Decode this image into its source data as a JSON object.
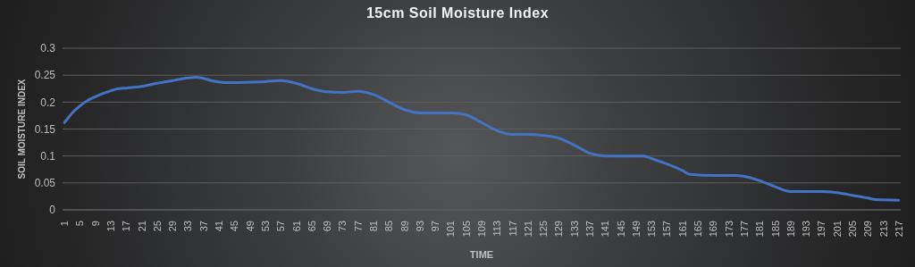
{
  "chart_data": {
    "type": "line",
    "title": "15cm Soil Moisture Index",
    "xlabel": "TIME",
    "ylabel": "SOIL MOISTURE INDEX",
    "x": [
      1,
      3,
      5,
      7,
      9,
      11,
      13,
      15,
      17,
      21,
      25,
      29,
      33,
      35,
      37,
      39,
      43,
      49,
      53,
      57,
      61,
      65,
      69,
      73,
      77,
      81,
      85,
      89,
      93,
      97,
      101,
      105,
      109,
      113,
      117,
      121,
      125,
      129,
      133,
      137,
      141,
      145,
      149,
      151,
      153,
      157,
      161,
      163,
      169,
      175,
      177,
      181,
      185,
      189,
      197,
      201,
      205,
      209,
      211,
      217
    ],
    "series": [
      {
        "color": "#4472c4",
        "values": [
          0.162,
          0.18,
          0.193,
          0.203,
          0.21,
          0.216,
          0.221,
          0.225,
          0.226,
          0.229,
          0.235,
          0.24,
          0.245,
          0.246,
          0.244,
          0.24,
          0.236,
          0.237,
          0.238,
          0.24,
          0.235,
          0.225,
          0.219,
          0.218,
          0.22,
          0.214,
          0.2,
          0.186,
          0.18,
          0.18,
          0.18,
          0.176,
          0.162,
          0.147,
          0.14,
          0.14,
          0.138,
          0.133,
          0.12,
          0.105,
          0.1,
          0.1,
          0.1,
          0.1,
          0.095,
          0.085,
          0.073,
          0.066,
          0.064,
          0.064,
          0.062,
          0.054,
          0.043,
          0.034,
          0.034,
          0.032,
          0.027,
          0.022,
          0.019,
          0.018
        ]
      }
    ],
    "xlim": [
      0.5,
      217.5
    ],
    "xticks": [
      1,
      5,
      9,
      13,
      17,
      21,
      25,
      29,
      33,
      37,
      41,
      45,
      49,
      53,
      57,
      61,
      65,
      69,
      73,
      77,
      81,
      85,
      89,
      93,
      97,
      101,
      105,
      109,
      113,
      117,
      121,
      125,
      129,
      133,
      137,
      141,
      145,
      149,
      153,
      157,
      161,
      165,
      169,
      173,
      177,
      181,
      185,
      189,
      193,
      197,
      201,
      205,
      209,
      213,
      217
    ],
    "ylim": [
      0,
      0.3
    ],
    "yticks": [
      0,
      0.05,
      0.1,
      0.15,
      0.2,
      0.25,
      0.3
    ],
    "grid": "y",
    "line_style": "solid"
  }
}
